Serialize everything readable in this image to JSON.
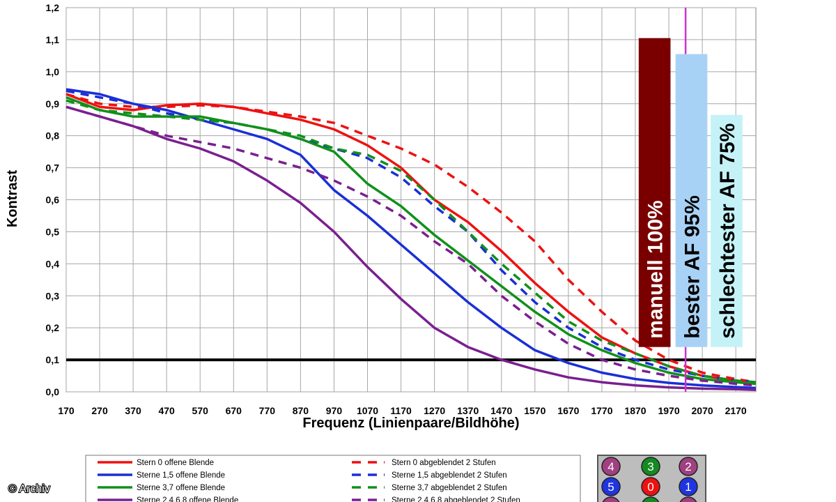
{
  "chart_data": {
    "type": "line",
    "title": "",
    "xlabel": "Frequenz (Linienpaare/Bildhöhe)",
    "ylabel": "Kontrast",
    "xlim": [
      170,
      2230
    ],
    "ylim": [
      0,
      1.2
    ],
    "x_ticks": [
      "170",
      "270",
      "370",
      "470",
      "570",
      "670",
      "770",
      "870",
      "970",
      "1070",
      "1170",
      "1270",
      "1370",
      "1470",
      "1570",
      "1670",
      "1770",
      "1870",
      "1970",
      "2070",
      "2170"
    ],
    "y_ticks": [
      "0,0",
      "0,1",
      "0,2",
      "0,3",
      "0,4",
      "0,5",
      "0,6",
      "0,7",
      "0,8",
      "0,9",
      "1,0",
      "1,1",
      "1,2"
    ],
    "grid": true,
    "reference_line": {
      "y": 0.1,
      "color": "#000000"
    },
    "vertical_marker": {
      "x": 2020,
      "color": "#cc33cc"
    },
    "series": [
      {
        "name": "Stern 0 offene Blende",
        "color": "#ee1111",
        "dash": false,
        "x": [
          170,
          270,
          370,
          470,
          570,
          670,
          770,
          870,
          970,
          1070,
          1170,
          1270,
          1370,
          1470,
          1570,
          1670,
          1770,
          1870,
          1970,
          2070,
          2170,
          2230
        ],
        "y": [
          0.93,
          0.89,
          0.88,
          0.895,
          0.9,
          0.89,
          0.87,
          0.85,
          0.82,
          0.77,
          0.7,
          0.6,
          0.53,
          0.44,
          0.34,
          0.25,
          0.17,
          0.12,
          0.08,
          0.05,
          0.035,
          0.03
        ]
      },
      {
        "name": "Stern 0 abgeblendet 2 Stufen",
        "color": "#ee1111",
        "dash": true,
        "x": [
          170,
          270,
          370,
          470,
          570,
          670,
          770,
          870,
          970,
          1070,
          1170,
          1270,
          1370,
          1470,
          1570,
          1670,
          1770,
          1870,
          1970,
          2070,
          2170,
          2230
        ],
        "y": [
          0.93,
          0.9,
          0.89,
          0.89,
          0.895,
          0.89,
          0.875,
          0.86,
          0.84,
          0.8,
          0.76,
          0.71,
          0.64,
          0.56,
          0.47,
          0.35,
          0.25,
          0.16,
          0.1,
          0.06,
          0.04,
          0.03
        ]
      },
      {
        "name": "Sterne 1,5 offene Blende",
        "color": "#1a2fd6",
        "dash": false,
        "x": [
          170,
          270,
          370,
          470,
          570,
          670,
          770,
          870,
          970,
          1070,
          1170,
          1270,
          1370,
          1470,
          1570,
          1670,
          1770,
          1870,
          1970,
          2070,
          2170,
          2230
        ],
        "y": [
          0.945,
          0.93,
          0.9,
          0.88,
          0.85,
          0.82,
          0.79,
          0.74,
          0.63,
          0.55,
          0.46,
          0.37,
          0.28,
          0.2,
          0.13,
          0.09,
          0.06,
          0.04,
          0.028,
          0.02,
          0.015,
          0.012
        ]
      },
      {
        "name": "Sterne 1,5 abgeblendet 2 Stufen",
        "color": "#1a2fd6",
        "dash": true,
        "x": [
          170,
          270,
          370,
          470,
          570,
          670,
          770,
          870,
          970,
          1070,
          1170,
          1270,
          1370,
          1470,
          1570,
          1670,
          1770,
          1870,
          1970,
          2070,
          2170,
          2230
        ],
        "y": [
          0.94,
          0.92,
          0.9,
          0.87,
          0.85,
          0.84,
          0.82,
          0.79,
          0.76,
          0.73,
          0.67,
          0.58,
          0.5,
          0.38,
          0.28,
          0.2,
          0.14,
          0.1,
          0.07,
          0.05,
          0.035,
          0.03
        ]
      },
      {
        "name": "Sterne 3,7 offene Blende",
        "color": "#11901a",
        "dash": false,
        "x": [
          170,
          270,
          370,
          470,
          570,
          670,
          770,
          870,
          970,
          1070,
          1170,
          1270,
          1370,
          1470,
          1570,
          1670,
          1770,
          1870,
          1970,
          2070,
          2170,
          2230
        ],
        "y": [
          0.92,
          0.88,
          0.86,
          0.86,
          0.86,
          0.84,
          0.82,
          0.79,
          0.75,
          0.65,
          0.58,
          0.49,
          0.41,
          0.33,
          0.25,
          0.18,
          0.13,
          0.09,
          0.06,
          0.04,
          0.03,
          0.025
        ]
      },
      {
        "name": "Sterne 3,7 abgeblendet 2 Stufen",
        "color": "#11901a",
        "dash": true,
        "x": [
          170,
          270,
          370,
          470,
          570,
          670,
          770,
          870,
          970,
          1070,
          1170,
          1270,
          1370,
          1470,
          1570,
          1670,
          1770,
          1870,
          1970,
          2070,
          2170,
          2230
        ],
        "y": [
          0.91,
          0.88,
          0.87,
          0.86,
          0.85,
          0.84,
          0.82,
          0.8,
          0.76,
          0.74,
          0.69,
          0.6,
          0.5,
          0.4,
          0.31,
          0.22,
          0.16,
          0.12,
          0.08,
          0.05,
          0.035,
          0.03
        ]
      },
      {
        "name": "Sterne 2,4,6,8 offene Blende",
        "color": "#7a1f8f",
        "dash": false,
        "x": [
          170,
          270,
          370,
          470,
          570,
          670,
          770,
          870,
          970,
          1070,
          1170,
          1270,
          1370,
          1470,
          1570,
          1670,
          1770,
          1870,
          1970,
          2070,
          2170,
          2230
        ],
        "y": [
          0.89,
          0.86,
          0.83,
          0.79,
          0.76,
          0.72,
          0.66,
          0.59,
          0.5,
          0.39,
          0.29,
          0.2,
          0.14,
          0.1,
          0.07,
          0.045,
          0.03,
          0.02,
          0.014,
          0.01,
          0.008,
          0.006
        ]
      },
      {
        "name": "Sterne 2,4,6,8 abgeblendet 2 Stufen",
        "color": "#7a1f8f",
        "dash": true,
        "x": [
          170,
          270,
          370,
          470,
          570,
          670,
          770,
          870,
          970,
          1070,
          1170,
          1270,
          1370,
          1470,
          1570,
          1670,
          1770,
          1870,
          1970,
          2070,
          2170,
          2230
        ],
        "y": [
          0.89,
          0.86,
          0.83,
          0.8,
          0.78,
          0.76,
          0.73,
          0.7,
          0.66,
          0.61,
          0.55,
          0.47,
          0.4,
          0.3,
          0.22,
          0.15,
          0.1,
          0.07,
          0.05,
          0.035,
          0.025,
          0.02
        ]
      }
    ],
    "bars": [
      {
        "label": "manuell 100%",
        "x_start": 1880,
        "x_end": 1975,
        "value": 1.105,
        "bottom": 0.14,
        "color": "#7a0000",
        "text_color": "#ffffff"
      },
      {
        "label": "bester AF 95%",
        "x_start": 1990,
        "x_end": 2085,
        "value": 1.055,
        "bottom": 0.14,
        "color": "#a8d2f5",
        "text_color": "#000000"
      },
      {
        "label": "schlechtester AF 75%",
        "x_start": 2095,
        "x_end": 2190,
        "value": 0.865,
        "bottom": 0.14,
        "color": "#c4f2f7",
        "text_color": "#000000"
      }
    ]
  },
  "legend": {
    "items_left": [
      {
        "label": "Stern 0 offene Blende",
        "color": "#ee1111"
      },
      {
        "label": "Sterne 1,5 offene Blende",
        "color": "#1a2fd6"
      },
      {
        "label": "Sterne 3,7 offene Blende",
        "color": "#11901a"
      },
      {
        "label": "Sterne 2,4,6,8 offene Blende",
        "color": "#7a1f8f"
      }
    ],
    "items_right": [
      {
        "label": "Stern 0 abgeblendet 2 Stufen",
        "color": "#ee1111"
      },
      {
        "label": "Sterne 1,5 abgeblendet 2 Stufen",
        "color": "#1a2fd6"
      },
      {
        "label": "Sterne 3,7 abgeblendet 2 Stufen",
        "color": "#11901a"
      },
      {
        "label": "Sterne 2,4,6,8 abgeblendet 2 Stufen",
        "color": "#7a1f8f"
      }
    ]
  },
  "star_markers": [
    {
      "label": "4",
      "color": "#a04080"
    },
    {
      "label": "3",
      "color": "#158a22"
    },
    {
      "label": "2",
      "color": "#a04080"
    },
    {
      "label": "5",
      "color": "#1f35e0"
    },
    {
      "label": "0",
      "color": "#ee1111"
    },
    {
      "label": "1",
      "color": "#1f35e0"
    }
  ],
  "credit": "© Archiv"
}
